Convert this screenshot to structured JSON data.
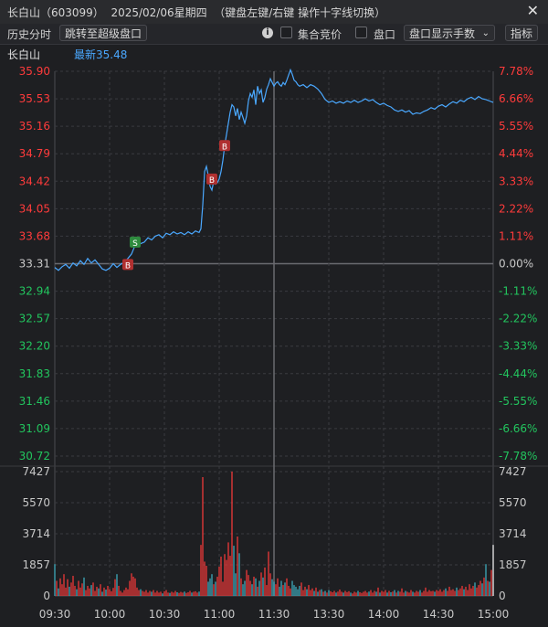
{
  "window": {
    "title": "长白山（603099）  2025/02/06星期四  （键盘左键/右键 操作十字线切换）",
    "close_icon": "close-icon"
  },
  "toolbar": {
    "history_label": "历史分时",
    "jump_button": "跳转至超级盘口",
    "info_icon": "info-icon",
    "auction_label": "集合竞价",
    "panel_label": "盘口",
    "panel_display_select": "盘口显示手数",
    "indicator_button": "指标"
  },
  "subheader": {
    "stock_name": "长白山",
    "latest_label": "最新35.48"
  },
  "colors": {
    "up": "#ff3b3b",
    "down": "#22c55e",
    "price_line": "#4aa8ff",
    "buy_marker": "#b03030",
    "sell_marker": "#2e8b3e"
  },
  "chart_data": {
    "type": "line",
    "title": "长白山 分时",
    "prev_close": 33.31,
    "price_axis": {
      "ylim": [
        30.72,
        35.9
      ],
      "ticks": [
        "35.90",
        "35.53",
        "35.16",
        "34.79",
        "34.42",
        "34.05",
        "33.68",
        "33.31",
        "32.94",
        "32.57",
        "32.20",
        "31.83",
        "31.46",
        "31.09",
        "30.72"
      ],
      "pct_ticks": [
        "7.78%",
        "6.66%",
        "5.55%",
        "4.44%",
        "3.33%",
        "2.22%",
        "1.11%",
        "0.00%",
        "-1.11%",
        "-2.22%",
        "-3.33%",
        "-4.44%",
        "-5.55%",
        "-6.66%",
        "-7.78%"
      ]
    },
    "volume_axis": {
      "ylim": [
        0,
        7427
      ],
      "ticks": [
        "7427",
        "5570",
        "3714",
        "1857",
        "0"
      ]
    },
    "time_axis": {
      "ticks": [
        "09:30",
        "10:00",
        "10:30",
        "11:00",
        "11:30",
        "13:30",
        "14:00",
        "14:30",
        "15:00"
      ],
      "total_minutes": 240
    },
    "price_series": [
      [
        0,
        33.26
      ],
      [
        2,
        33.22
      ],
      [
        4,
        33.27
      ],
      [
        6,
        33.3
      ],
      [
        8,
        33.25
      ],
      [
        10,
        33.32
      ],
      [
        12,
        33.28
      ],
      [
        14,
        33.35
      ],
      [
        16,
        33.3
      ],
      [
        18,
        33.38
      ],
      [
        20,
        33.32
      ],
      [
        22,
        33.36
      ],
      [
        24,
        33.3
      ],
      [
        26,
        33.24
      ],
      [
        28,
        33.22
      ],
      [
        30,
        33.25
      ],
      [
        32,
        33.31
      ],
      [
        34,
        33.26
      ],
      [
        36,
        33.3
      ],
      [
        38,
        33.33
      ],
      [
        40,
        33.38
      ],
      [
        42,
        33.44
      ],
      [
        44,
        33.56
      ],
      [
        45,
        33.62
      ],
      [
        47,
        33.58
      ],
      [
        49,
        33.6
      ],
      [
        51,
        33.66
      ],
      [
        53,
        33.63
      ],
      [
        55,
        33.68
      ],
      [
        57,
        33.7
      ],
      [
        59,
        33.66
      ],
      [
        61,
        33.72
      ],
      [
        63,
        33.7
      ],
      [
        65,
        33.74
      ],
      [
        67,
        33.71
      ],
      [
        69,
        33.73
      ],
      [
        71,
        33.7
      ],
      [
        73,
        33.74
      ],
      [
        75,
        33.71
      ],
      [
        77,
        33.75
      ],
      [
        79,
        33.73
      ],
      [
        80,
        33.78
      ],
      [
        81,
        34.1
      ],
      [
        82,
        34.55
      ],
      [
        83,
        34.62
      ],
      [
        84,
        34.5
      ],
      [
        85,
        34.35
      ],
      [
        86,
        34.3
      ],
      [
        87,
        34.42
      ],
      [
        88,
        34.38
      ],
      [
        89,
        34.4
      ],
      [
        90,
        34.45
      ],
      [
        91,
        34.55
      ],
      [
        92,
        34.7
      ],
      [
        93,
        34.9
      ],
      [
        94,
        35.05
      ],
      [
        95,
        35.2
      ],
      [
        96,
        35.35
      ],
      [
        97,
        35.45
      ],
      [
        98,
        35.42
      ],
      [
        99,
        35.3
      ],
      [
        100,
        35.4
      ],
      [
        101,
        35.25
      ],
      [
        102,
        35.35
      ],
      [
        103,
        35.28
      ],
      [
        104,
        35.2
      ],
      [
        105,
        35.3
      ],
      [
        106,
        35.5
      ],
      [
        107,
        35.6
      ],
      [
        108,
        35.55
      ],
      [
        109,
        35.65
      ],
      [
        110,
        35.45
      ],
      [
        111,
        35.7
      ],
      [
        112,
        35.6
      ],
      [
        113,
        35.65
      ],
      [
        114,
        35.48
      ],
      [
        115,
        35.55
      ],
      [
        116,
        35.66
      ],
      [
        117,
        35.72
      ],
      [
        118,
        35.8
      ],
      [
        119,
        35.75
      ],
      [
        120,
        35.7
      ],
      [
        121,
        35.74
      ],
      [
        122,
        35.76
      ],
      [
        123,
        35.72
      ],
      [
        124,
        35.7
      ],
      [
        125,
        35.75
      ],
      [
        126,
        35.72
      ],
      [
        127,
        35.78
      ],
      [
        128,
        35.85
      ],
      [
        129,
        35.92
      ],
      [
        130,
        35.86
      ],
      [
        131,
        35.78
      ],
      [
        132,
        35.76
      ],
      [
        133,
        35.72
      ],
      [
        134,
        35.7
      ],
      [
        136,
        35.72
      ],
      [
        138,
        35.68
      ],
      [
        140,
        35.72
      ],
      [
        142,
        35.7
      ],
      [
        144,
        35.66
      ],
      [
        146,
        35.6
      ],
      [
        148,
        35.52
      ],
      [
        150,
        35.48
      ],
      [
        152,
        35.5
      ],
      [
        154,
        35.47
      ],
      [
        156,
        35.49
      ],
      [
        158,
        35.47
      ],
      [
        160,
        35.5
      ],
      [
        162,
        35.48
      ],
      [
        164,
        35.51
      ],
      [
        166,
        35.48
      ],
      [
        168,
        35.5
      ],
      [
        170,
        35.53
      ],
      [
        172,
        35.5
      ],
      [
        174,
        35.52
      ],
      [
        176,
        35.48
      ],
      [
        178,
        35.45
      ],
      [
        180,
        35.47
      ],
      [
        182,
        35.44
      ],
      [
        184,
        35.42
      ],
      [
        186,
        35.38
      ],
      [
        188,
        35.36
      ],
      [
        190,
        35.38
      ],
      [
        192,
        35.35
      ],
      [
        194,
        35.37
      ],
      [
        196,
        35.32
      ],
      [
        198,
        35.34
      ],
      [
        200,
        35.33
      ],
      [
        202,
        35.36
      ],
      [
        204,
        35.38
      ],
      [
        206,
        35.41
      ],
      [
        208,
        35.39
      ],
      [
        210,
        35.43
      ],
      [
        212,
        35.45
      ],
      [
        214,
        35.42
      ],
      [
        216,
        35.46
      ],
      [
        218,
        35.49
      ],
      [
        220,
        35.47
      ],
      [
        222,
        35.51
      ],
      [
        224,
        35.49
      ],
      [
        226,
        35.53
      ],
      [
        228,
        35.55
      ],
      [
        230,
        35.52
      ],
      [
        232,
        35.56
      ],
      [
        234,
        35.53
      ],
      [
        236,
        35.52
      ],
      [
        238,
        35.5
      ],
      [
        240,
        35.48
      ]
    ],
    "trade_markers": [
      {
        "t": 40,
        "price": 33.3,
        "label": "B",
        "kind": "buy"
      },
      {
        "t": 44,
        "price": 33.6,
        "label": "S",
        "kind": "sell"
      },
      {
        "t": 86,
        "price": 34.45,
        "label": "B",
        "kind": "buy"
      },
      {
        "t": 93,
        "price": 34.9,
        "label": "B",
        "kind": "buy"
      }
    ],
    "volume_series": [
      [
        0,
        1900
      ],
      [
        1,
        900
      ],
      [
        2,
        450
      ],
      [
        3,
        1050
      ],
      [
        4,
        700
      ],
      [
        5,
        1300
      ],
      [
        6,
        500
      ],
      [
        7,
        1000
      ],
      [
        8,
        550
      ],
      [
        9,
        800
      ],
      [
        10,
        1200
      ],
      [
        11,
        600
      ],
      [
        12,
        400
      ],
      [
        13,
        900
      ],
      [
        14,
        500
      ],
      [
        15,
        750
      ],
      [
        16,
        1100
      ],
      [
        17,
        350
      ],
      [
        18,
        600
      ],
      [
        19,
        450
      ],
      [
        20,
        650
      ],
      [
        21,
        800
      ],
      [
        22,
        300
      ],
      [
        23,
        550
      ],
      [
        24,
        450
      ],
      [
        25,
        700
      ],
      [
        26,
        250
      ],
      [
        27,
        500
      ],
      [
        28,
        380
      ],
      [
        29,
        600
      ],
      [
        30,
        400
      ],
      [
        31,
        280
      ],
      [
        32,
        480
      ],
      [
        33,
        1000
      ],
      [
        34,
        1300
      ],
      [
        35,
        600
      ],
      [
        36,
        300
      ],
      [
        37,
        200
      ],
      [
        38,
        350
      ],
      [
        39,
        500
      ],
      [
        40,
        400
      ],
      [
        41,
        900
      ],
      [
        42,
        1350
      ],
      [
        43,
        1150
      ],
      [
        44,
        1050
      ],
      [
        45,
        500
      ],
      [
        46,
        350
      ],
      [
        47,
        400
      ],
      [
        48,
        300
      ],
      [
        49,
        250
      ],
      [
        50,
        350
      ],
      [
        51,
        200
      ],
      [
        52,
        300
      ],
      [
        53,
        250
      ],
      [
        54,
        350
      ],
      [
        55,
        200
      ],
      [
        56,
        300
      ],
      [
        57,
        200
      ],
      [
        58,
        250
      ],
      [
        59,
        150
      ],
      [
        60,
        280
      ],
      [
        61,
        350
      ],
      [
        62,
        200
      ],
      [
        63,
        180
      ],
      [
        64,
        250
      ],
      [
        65,
        200
      ],
      [
        66,
        300
      ],
      [
        67,
        220
      ],
      [
        68,
        180
      ],
      [
        69,
        240
      ],
      [
        70,
        200
      ],
      [
        71,
        260
      ],
      [
        72,
        180
      ],
      [
        73,
        220
      ],
      [
        74,
        300
      ],
      [
        75,
        200
      ],
      [
        76,
        250
      ],
      [
        77,
        280
      ],
      [
        78,
        200
      ],
      [
        79,
        260
      ],
      [
        80,
        3050
      ],
      [
        81,
        7100
      ],
      [
        82,
        2050
      ],
      [
        83,
        1800
      ],
      [
        84,
        850
      ],
      [
        85,
        1050
      ],
      [
        86,
        1300
      ],
      [
        87,
        700
      ],
      [
        88,
        850
      ],
      [
        89,
        1150
      ],
      [
        90,
        1750
      ],
      [
        91,
        2350
      ],
      [
        92,
        850
      ],
      [
        93,
        2500
      ],
      [
        94,
        2150
      ],
      [
        95,
        3200
      ],
      [
        96,
        2400
      ],
      [
        97,
        7427
      ],
      [
        98,
        3000
      ],
      [
        99,
        1350
      ],
      [
        100,
        3550
      ],
      [
        101,
        2550
      ],
      [
        102,
        1050
      ],
      [
        103,
        700
      ],
      [
        104,
        900
      ],
      [
        105,
        1550
      ],
      [
        106,
        1250
      ],
      [
        107,
        900
      ],
      [
        108,
        700
      ],
      [
        109,
        1150
      ],
      [
        110,
        1050
      ],
      [
        111,
        550
      ],
      [
        112,
        900
      ],
      [
        113,
        1400
      ],
      [
        114,
        1100
      ],
      [
        115,
        1700
      ],
      [
        116,
        650
      ],
      [
        117,
        2650
      ],
      [
        118,
        1350
      ],
      [
        119,
        1000
      ],
      [
        120,
        850
      ],
      [
        121,
        700
      ],
      [
        122,
        1050
      ],
      [
        123,
        550
      ],
      [
        124,
        900
      ],
      [
        125,
        650
      ],
      [
        126,
        800
      ],
      [
        127,
        1050
      ],
      [
        128,
        600
      ],
      [
        129,
        450
      ],
      [
        130,
        900
      ],
      [
        131,
        650
      ],
      [
        132,
        550
      ],
      [
        133,
        400
      ],
      [
        134,
        600
      ],
      [
        135,
        800
      ],
      [
        136,
        350
      ],
      [
        137,
        550
      ],
      [
        138,
        400
      ],
      [
        139,
        650
      ],
      [
        140,
        350
      ],
      [
        141,
        450
      ],
      [
        142,
        300
      ],
      [
        143,
        500
      ],
      [
        144,
        250
      ],
      [
        145,
        350
      ],
      [
        146,
        400
      ],
      [
        147,
        250
      ],
      [
        148,
        300
      ],
      [
        149,
        200
      ],
      [
        150,
        350
      ],
      [
        151,
        280
      ],
      [
        152,
        220
      ],
      [
        153,
        300
      ],
      [
        154,
        200
      ],
      [
        155,
        260
      ],
      [
        156,
        380
      ],
      [
        157,
        250
      ],
      [
        158,
        200
      ],
      [
        159,
        300
      ],
      [
        160,
        230
      ],
      [
        161,
        280
      ],
      [
        162,
        200
      ],
      [
        163,
        150
      ],
      [
        164,
        250
      ],
      [
        165,
        200
      ],
      [
        166,
        300
      ],
      [
        167,
        220
      ],
      [
        168,
        180
      ],
      [
        169,
        250
      ],
      [
        170,
        300
      ],
      [
        171,
        200
      ],
      [
        172,
        260
      ],
      [
        173,
        350
      ],
      [
        174,
        200
      ],
      [
        175,
        300
      ],
      [
        176,
        250
      ],
      [
        177,
        500
      ],
      [
        178,
        200
      ],
      [
        179,
        300
      ],
      [
        180,
        250
      ],
      [
        181,
        350
      ],
      [
        182,
        200
      ],
      [
        183,
        300
      ],
      [
        184,
        220
      ],
      [
        185,
        260
      ],
      [
        186,
        350
      ],
      [
        187,
        200
      ],
      [
        188,
        300
      ],
      [
        189,
        250
      ],
      [
        190,
        450
      ],
      [
        191,
        200
      ],
      [
        192,
        300
      ],
      [
        193,
        250
      ],
      [
        194,
        200
      ],
      [
        195,
        350
      ],
      [
        196,
        250
      ],
      [
        197,
        200
      ],
      [
        198,
        300
      ],
      [
        199,
        250
      ],
      [
        200,
        350
      ],
      [
        201,
        200
      ],
      [
        202,
        300
      ],
      [
        203,
        500
      ],
      [
        204,
        250
      ],
      [
        205,
        350
      ],
      [
        206,
        280
      ],
      [
        207,
        300
      ],
      [
        208,
        250
      ],
      [
        209,
        350
      ],
      [
        210,
        300
      ],
      [
        211,
        400
      ],
      [
        212,
        250
      ],
      [
        213,
        350
      ],
      [
        214,
        450
      ],
      [
        215,
        300
      ],
      [
        216,
        550
      ],
      [
        217,
        350
      ],
      [
        218,
        400
      ],
      [
        219,
        300
      ],
      [
        220,
        500
      ],
      [
        221,
        350
      ],
      [
        222,
        450
      ],
      [
        223,
        600
      ],
      [
        224,
        400
      ],
      [
        225,
        550
      ],
      [
        226,
        350
      ],
      [
        227,
        700
      ],
      [
        228,
        450
      ],
      [
        229,
        600
      ],
      [
        230,
        800
      ],
      [
        231,
        500
      ],
      [
        232,
        650
      ],
      [
        233,
        900
      ],
      [
        234,
        750
      ],
      [
        235,
        1100
      ],
      [
        236,
        1900
      ],
      [
        237,
        900
      ],
      [
        238,
        850
      ],
      [
        239,
        1550
      ],
      [
        240,
        3050
      ]
    ]
  }
}
